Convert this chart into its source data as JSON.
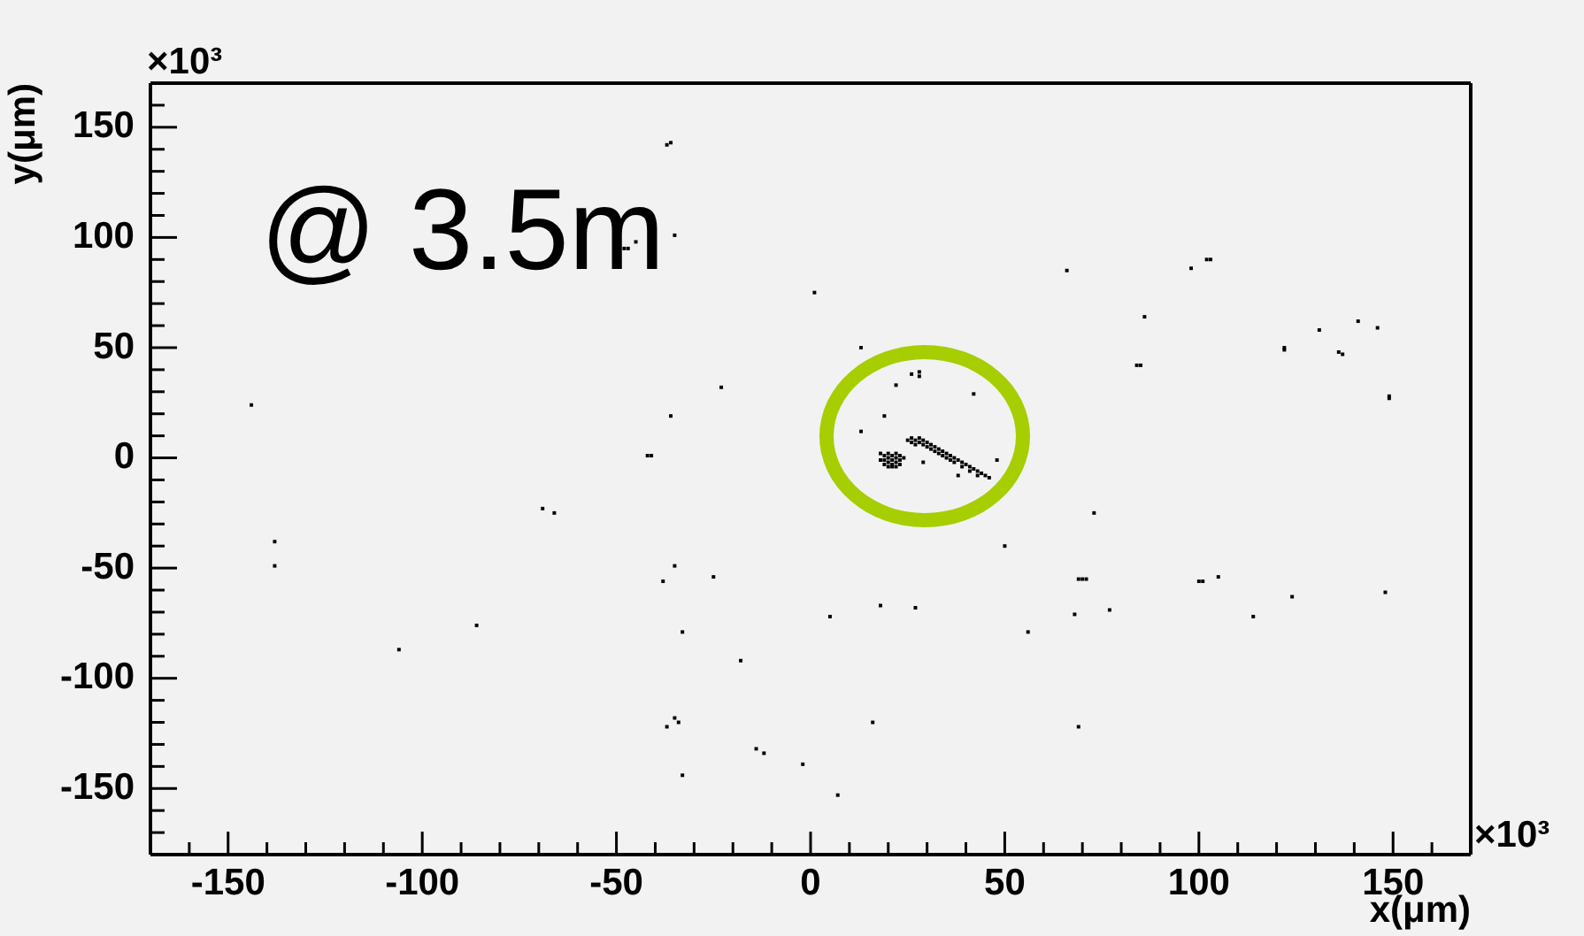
{
  "chart_data": {
    "type": "scatter",
    "xlabel": "x(μm)",
    "ylabel": "y(μm)",
    "annotations": [
      "@ 3.5m",
      "×10³",
      "×10³"
    ],
    "x": [
      -37,
      -36,
      -35,
      -48,
      -47,
      -45,
      1,
      66,
      98,
      102,
      103,
      86,
      84,
      85,
      13,
      -23,
      -36,
      -144,
      -42,
      -41,
      26,
      28,
      28,
      22,
      42,
      19,
      13,
      122,
      122,
      131,
      141,
      146,
      136,
      137,
      149,
      149,
      48,
      38,
      29,
      18,
      19,
      20,
      21,
      22,
      23,
      19,
      20,
      21,
      22,
      23,
      24,
      20,
      21,
      22,
      23,
      19,
      21,
      22,
      18,
      20,
      25,
      26,
      26,
      27,
      27,
      28,
      28,
      29,
      29,
      30,
      30,
      31,
      31,
      32,
      32,
      33,
      33,
      34,
      34,
      35,
      35,
      36,
      36,
      37,
      37,
      38,
      39,
      39,
      40,
      41,
      41,
      42,
      43,
      43,
      44,
      45,
      46,
      -138,
      -138,
      -69,
      -66,
      -86,
      -106,
      -38,
      -35,
      -25,
      -33,
      -18,
      -37,
      -35,
      -34,
      -33,
      -14,
      -12,
      -2,
      7,
      5,
      18,
      27,
      16,
      50,
      73,
      69,
      70,
      71,
      68,
      77,
      56,
      69,
      100,
      101,
      105,
      114,
      124,
      148
    ],
    "values": [
      142,
      143,
      101,
      95,
      95,
      98,
      75,
      85,
      86,
      90,
      90,
      64,
      42,
      42,
      50,
      32,
      19,
      24,
      1,
      1,
      38,
      39,
      37,
      33,
      29,
      19,
      12,
      50,
      49,
      58,
      62,
      59,
      48,
      47,
      28,
      27,
      -1,
      -8,
      -2,
      2,
      1,
      2,
      1,
      2,
      1,
      -1,
      0,
      -1,
      0,
      -1,
      0,
      -2,
      -3,
      -2,
      -3,
      -3,
      -4,
      -4,
      -1,
      -4,
      8,
      9,
      7,
      8,
      6,
      7,
      9,
      6,
      8,
      5,
      7,
      4,
      6,
      5,
      3,
      4,
      2,
      3,
      1,
      2,
      0,
      1,
      -1,
      0,
      -2,
      -1,
      -2,
      -4,
      -3,
      -4,
      -6,
      -5,
      -6,
      -8,
      -7,
      -8,
      -9,
      -38,
      -49,
      -23,
      -25,
      -76,
      -87,
      -56,
      -49,
      -54,
      -79,
      -92,
      -122,
      -118,
      -120,
      -144,
      -132,
      -134,
      -139,
      -153,
      -72,
      -67,
      -68,
      -120,
      -40,
      -25,
      -55,
      -55,
      -55,
      -71,
      -69,
      -79,
      -122,
      -56,
      -56,
      -54,
      -72,
      -63,
      -61
    ],
    "color": "#000000",
    "marker": "square",
    "xlim": [
      -170,
      170
    ],
    "xticks": [
      {
        "value": -160,
        "label": null
      },
      -150,
      {
        "value": -140,
        "label": null
      },
      {
        "value": -130,
        "label": null
      },
      {
        "value": -120,
        "label": null
      },
      {
        "value": -110,
        "label": null
      },
      -100,
      {
        "value": -90,
        "label": null
      },
      {
        "value": -80,
        "label": null
      },
      {
        "value": -70,
        "label": null
      },
      {
        "value": -60,
        "label": null
      },
      -50,
      {
        "value": -40,
        "label": null
      },
      {
        "value": -30,
        "label": null
      },
      {
        "value": -20,
        "label": null
      },
      {
        "value": -10,
        "label": null
      },
      0,
      {
        "value": 10,
        "label": null
      },
      {
        "value": 20,
        "label": null
      },
      {
        "value": 30,
        "label": null
      },
      {
        "value": 40,
        "label": null
      },
      50,
      {
        "value": 60,
        "label": null
      },
      {
        "value": 70,
        "label": null
      },
      {
        "value": 80,
        "label": null
      },
      {
        "value": 90,
        "label": null
      },
      100,
      {
        "value": 110,
        "label": null
      },
      {
        "value": 120,
        "label": null
      },
      {
        "value": 130,
        "label": null
      },
      {
        "value": 140,
        "label": null
      },
      150,
      {
        "value": 160,
        "label": null
      }
    ],
    "ylim": [
      -180,
      170
    ],
    "yticks": [
      {
        "value": -170,
        "label": null
      },
      {
        "value": -160,
        "label": null
      },
      -150,
      {
        "value": -140,
        "label": null
      },
      {
        "value": -130,
        "label": null
      },
      {
        "value": -120,
        "label": null
      },
      {
        "value": -110,
        "label": null
      },
      -100,
      {
        "value": -90,
        "label": null
      },
      {
        "value": -80,
        "label": null
      },
      {
        "value": -70,
        "label": null
      },
      {
        "value": -60,
        "label": null
      },
      -50,
      {
        "value": -40,
        "label": null
      },
      {
        "value": -30,
        "label": null
      },
      {
        "value": -20,
        "label": null
      },
      {
        "value": -10,
        "label": null
      },
      0,
      {
        "value": 10,
        "label": null
      },
      {
        "value": 20,
        "label": null
      },
      {
        "value": 30,
        "label": null
      },
      {
        "value": 40,
        "label": null
      },
      50,
      {
        "value": 60,
        "label": null
      },
      {
        "value": 70,
        "label": null
      },
      {
        "value": 80,
        "label": null
      },
      {
        "value": 90,
        "label": null
      },
      100,
      {
        "value": 110,
        "label": null
      },
      {
        "value": 120,
        "label": null
      },
      {
        "value": 130,
        "label": null
      },
      {
        "value": 140,
        "label": null
      },
      150,
      {
        "value": 160,
        "label": null
      }
    ]
  }
}
